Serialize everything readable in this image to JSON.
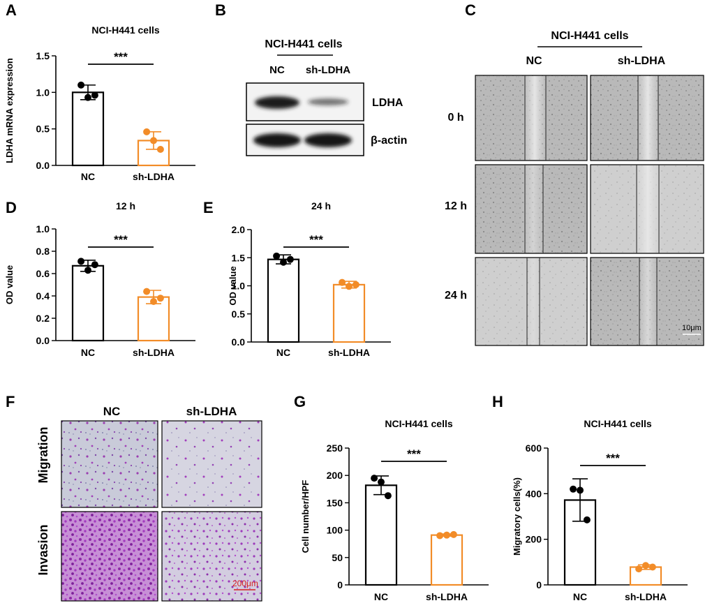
{
  "panels": {
    "A": "A",
    "B": "B",
    "C": "C",
    "D": "D",
    "E": "E",
    "F": "F",
    "G": "G",
    "H": "H"
  },
  "colors": {
    "nc": "#000000",
    "sh": "#F28C28",
    "scale_bar_F": "#D62020",
    "scale_bar_C": "#ffffff"
  },
  "significance": "***",
  "chart_data": [
    {
      "id": "A",
      "type": "bar",
      "title": "NCI-H441 cells",
      "xlabel": "",
      "ylabel": "LDHA mRNA expression",
      "categories": [
        "NC",
        "sh-LDHA"
      ],
      "values": [
        1.0,
        0.34
      ],
      "errors": [
        0.1,
        0.12
      ],
      "points": [
        [
          1.1,
          0.93,
          0.96
        ],
        [
          0.46,
          0.34,
          0.22
        ]
      ],
      "ylim": [
        0,
        1.5
      ],
      "yticks": [
        0,
        0.5,
        1.0,
        1.5
      ],
      "ytick_labels": [
        "0.0",
        "0.5",
        "1.0",
        "1.5"
      ],
      "sig": "***"
    },
    {
      "id": "D",
      "type": "bar",
      "title": "12 h",
      "xlabel": "",
      "ylabel": "OD value",
      "categories": [
        "NC",
        "sh-LDHA"
      ],
      "values": [
        0.67,
        0.39
      ],
      "errors": [
        0.05,
        0.06
      ],
      "points": [
        [
          0.71,
          0.63,
          0.68
        ],
        [
          0.44,
          0.35,
          0.38
        ]
      ],
      "ylim": [
        0,
        1.0
      ],
      "yticks": [
        0,
        0.2,
        0.4,
        0.6,
        0.8,
        1.0
      ],
      "ytick_labels": [
        "0.0",
        "0.2",
        "0.4",
        "0.6",
        "0.8",
        "1.0"
      ],
      "sig": "***"
    },
    {
      "id": "E",
      "type": "bar",
      "title": "24 h",
      "xlabel": "",
      "ylabel": "OD value",
      "categories": [
        "NC",
        "sh-LDHA"
      ],
      "values": [
        1.47,
        1.02
      ],
      "errors": [
        0.08,
        0.06
      ],
      "points": [
        [
          1.53,
          1.42,
          1.47
        ],
        [
          1.06,
          0.99,
          1.02
        ]
      ],
      "ylim": [
        0,
        2.0
      ],
      "yticks": [
        0,
        0.5,
        1.0,
        1.5,
        2.0
      ],
      "ytick_labels": [
        "0.0",
        "0.5",
        "1.0",
        "1.5",
        "2.0"
      ],
      "sig": "***"
    },
    {
      "id": "G",
      "type": "bar",
      "title": "NCI-H441 cells",
      "xlabel": "",
      "ylabel": "Cell number/HPF",
      "categories": [
        "NC",
        "sh-LDHA"
      ],
      "values": [
        182,
        91
      ],
      "errors": [
        17,
        2
      ],
      "points": [
        [
          195,
          188,
          163
        ],
        [
          90,
          91,
          92
        ]
      ],
      "ylim": [
        0,
        250
      ],
      "yticks": [
        0,
        50,
        100,
        150,
        200,
        250
      ],
      "ytick_labels": [
        "0",
        "50",
        "100",
        "150",
        "200",
        "250"
      ],
      "sig": "***"
    },
    {
      "id": "H",
      "type": "bar",
      "title": "NCI-H441 cells",
      "xlabel": "",
      "ylabel": "Migratory cells(%)",
      "categories": [
        "NC",
        "sh-LDHA"
      ],
      "values": [
        372,
        78
      ],
      "errors": [
        93,
        10
      ],
      "points": [
        [
          420,
          415,
          285
        ],
        [
          70,
          85,
          78
        ]
      ],
      "ylim": [
        0,
        600
      ],
      "yticks": [
        0,
        200,
        400,
        600
      ],
      "ytick_labels": [
        "0",
        "200",
        "400",
        "600"
      ],
      "sig": "***"
    }
  ],
  "western_blot": {
    "title": "NCI-H441 cells",
    "lanes": [
      "NC",
      "sh-LDHA"
    ],
    "bands": [
      {
        "label": "LDHA",
        "intensity": [
          1.0,
          0.45
        ]
      },
      {
        "label": "β-actin",
        "intensity": [
          1.0,
          1.0
        ]
      }
    ]
  },
  "wound_healing": {
    "title": "NCI-H441 cells",
    "columns": [
      "NC",
      "sh-LDHA"
    ],
    "rows": [
      "0 h",
      "12 h",
      "24 h"
    ],
    "scale_bar": "10μm"
  },
  "transwell": {
    "columns": [
      "NC",
      "sh-LDHA"
    ],
    "rows": [
      "Migration",
      "Invasion"
    ],
    "scale_bar": "200μm"
  }
}
